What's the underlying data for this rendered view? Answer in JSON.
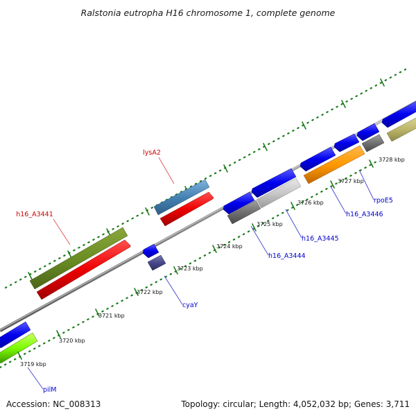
{
  "title": "Ralstonia eutropha H16 chromosome 1, complete genome",
  "footer": {
    "accession": "Accession: NC_008313",
    "topology": "Topology: circular; Length: 4,052,032 bp; Genes: 3,711"
  },
  "colors": {
    "backbone": "#8c8c8c",
    "ticks": "#1a7a1a",
    "label_forward": "#cc0000",
    "label_reverse": "#0000cc",
    "leader_forward": "#e05050",
    "leader_reverse": "#4040d0"
  },
  "scale_labels": [
    "3719 kbp",
    "3720 kbp",
    "3721 kbp",
    "3722 kbp",
    "3723 kbp",
    "3724 kbp",
    "3725 kbp",
    "3726 kbp",
    "3727 kbp",
    "3728 kbp"
  ],
  "gene_labels": [
    {
      "id": "lysA2",
      "text": "lysA2",
      "strand": "forward"
    },
    {
      "id": "h16_A3441",
      "text": "h16_A3441",
      "strand": "forward"
    },
    {
      "id": "cyaY",
      "text": "cyaY",
      "strand": "reverse"
    },
    {
      "id": "h16_A3444",
      "text": "h16_A3444",
      "strand": "reverse"
    },
    {
      "id": "h16_A3445",
      "text": "h16_A3445",
      "strand": "reverse"
    },
    {
      "id": "h16_A3446",
      "text": "h16_A3446",
      "strand": "reverse"
    },
    {
      "id": "rpoE5",
      "text": "rpoE5",
      "strand": "reverse"
    },
    {
      "id": "pilM",
      "text": "pilM",
      "strand": "reverse"
    }
  ]
}
